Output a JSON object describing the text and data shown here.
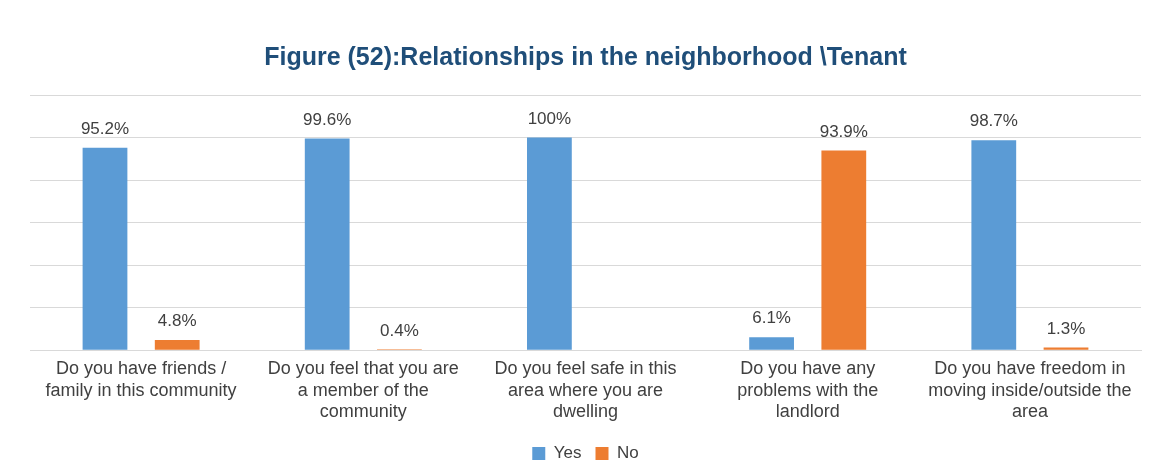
{
  "chart_data": {
    "type": "bar",
    "title": "Figure (52):Relationships in the neighborhood \\Tenant",
    "categories": [
      "Do you have friends / family in this community",
      "Do you feel that you are a member of the community",
      "Do you feel safe in this area where you are dwelling",
      "Do you have any problems with the landlord",
      "Do you have freedom in moving inside/outside the area"
    ],
    "series": [
      {
        "name": "Yes",
        "color": "#5b9bd5",
        "values": [
          95.2,
          99.6,
          100,
          6.1,
          98.7
        ],
        "value_labels": [
          "95.2%",
          "99.6%",
          "100%",
          "6.1%",
          "98.7%"
        ]
      },
      {
        "name": "No",
        "color": "#ed7d31",
        "values": [
          4.8,
          0.4,
          null,
          93.9,
          1.3
        ],
        "value_labels": [
          "4.8%",
          "0.4%",
          null,
          "93.9%",
          "1.3%"
        ]
      }
    ],
    "ylim": [
      0,
      120
    ],
    "yticks": [
      {
        "value": 0,
        "label": null
      },
      {
        "value": 20,
        "label": null
      },
      {
        "value": 40,
        "label": null
      },
      {
        "value": 60,
        "label": null
      },
      {
        "value": 80,
        "label": null
      },
      {
        "value": 100,
        "label": null
      },
      {
        "value": 120,
        "label": null
      }
    ],
    "tick_labels": "x",
    "grid": "y",
    "legend": "bottom"
  }
}
